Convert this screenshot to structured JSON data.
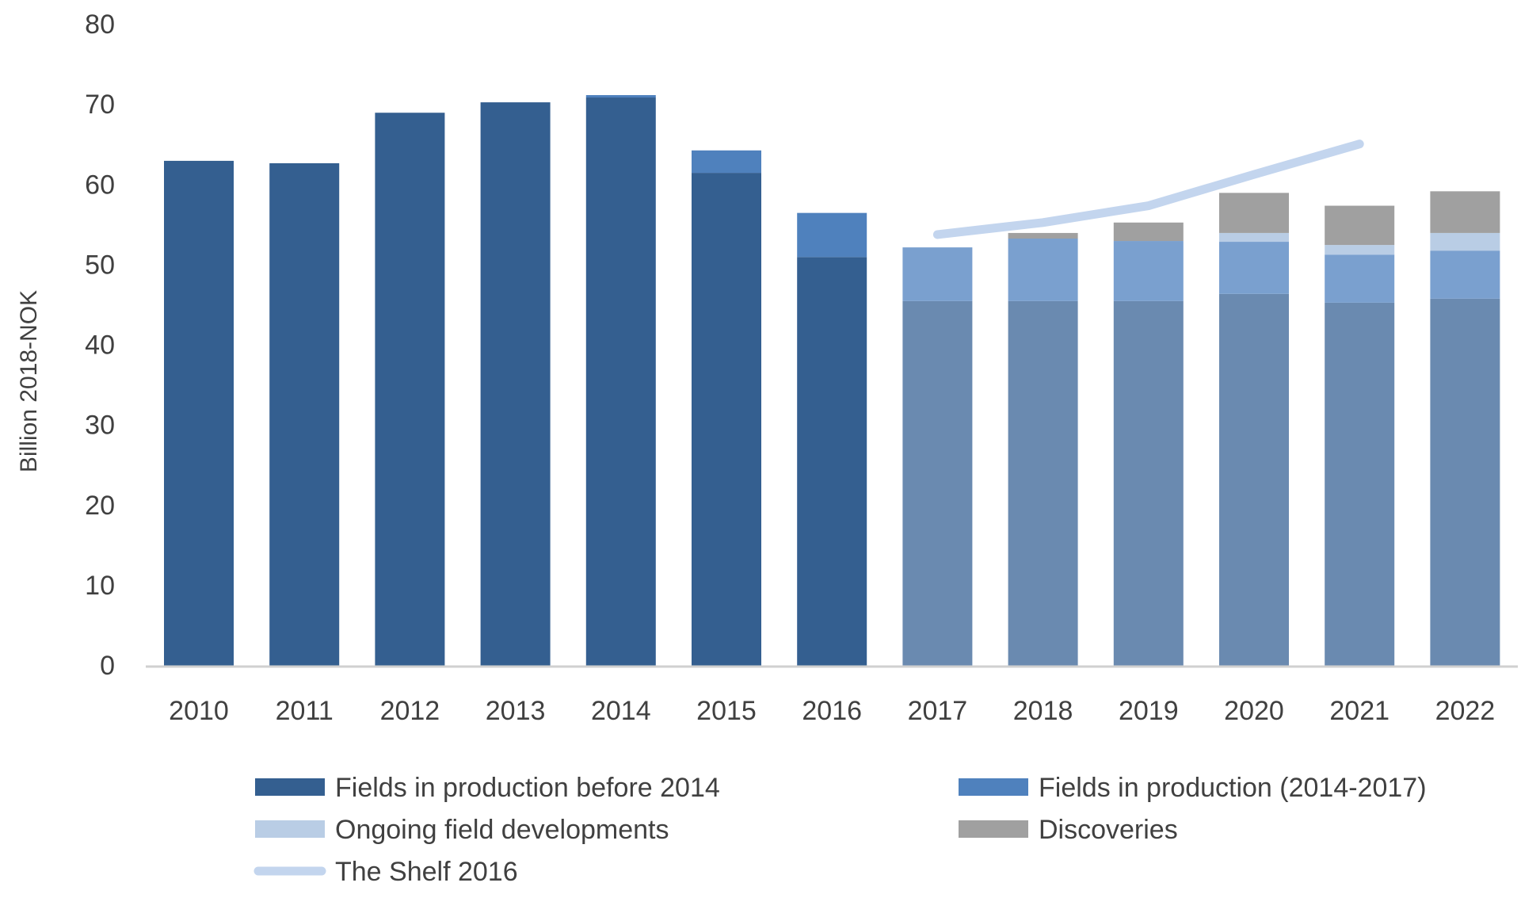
{
  "chart_data": {
    "type": "bar",
    "stacked": true,
    "title": "",
    "xlabel": "",
    "ylabel": "Billion 2018-NOK",
    "ylim": [
      0,
      80
    ],
    "yticks": [
      "0",
      "10",
      "20",
      "30",
      "40",
      "50",
      "60",
      "70",
      "80"
    ],
    "grid": false,
    "legend_position": "bottom",
    "categories": [
      "2010",
      "2011",
      "2012",
      "2013",
      "2014",
      "2015",
      "2016",
      "2017",
      "2018",
      "2019",
      "2020",
      "2021",
      "2022"
    ],
    "series": [
      {
        "name": "Fields in production before 2014",
        "color": "#345f90",
        "forecast_color": "#6a8ab0",
        "values": [
          63.0,
          62.7,
          69.0,
          70.3,
          70.9,
          61.5,
          51.0,
          45.5,
          45.5,
          45.5,
          46.4,
          45.3,
          45.8
        ]
      },
      {
        "name": "Fields in production (2014-2017)",
        "color": "#4f81bd",
        "forecast_color": "#7aa0cf",
        "values": [
          0,
          0,
          0,
          0,
          0.3,
          2.8,
          5.5,
          6.7,
          7.8,
          7.5,
          6.5,
          6.0,
          6.0
        ]
      },
      {
        "name": "Ongoing field developments",
        "color": "#b9cde5",
        "forecast_color": "#b9cde5",
        "values": [
          0,
          0,
          0,
          0,
          0,
          0,
          0,
          0,
          0,
          0,
          1.1,
          1.2,
          2.2
        ]
      },
      {
        "name": "Discoveries",
        "color": "#a0a0a0",
        "forecast_color": "#a0a0a0",
        "values": [
          0,
          0,
          0,
          0,
          0,
          0,
          0,
          0,
          0.7,
          2.3,
          5.0,
          4.9,
          5.2
        ]
      }
    ],
    "forecast_from": "2017",
    "line_series": {
      "name": "The Shelf  2016",
      "color": "#c3d5ee",
      "x": [
        "2017",
        "2018",
        "2019",
        "2020",
        "2021"
      ],
      "values": [
        53.8,
        55.3,
        57.4,
        61.3,
        65.1
      ]
    }
  }
}
